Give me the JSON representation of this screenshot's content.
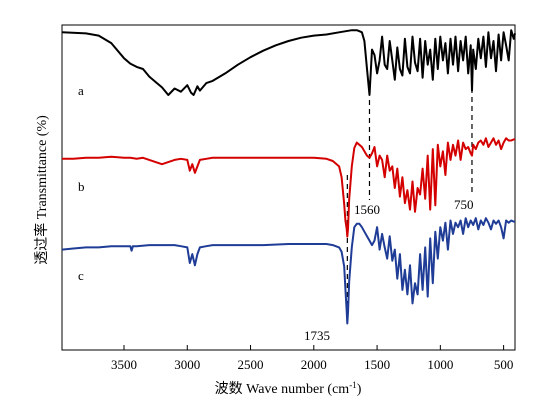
{
  "chart_data": {
    "type": "line",
    "title": "",
    "xlabel": "波数 Wave number (cm",
    "xlabel_sup": "-1",
    "xlabel_close": ")",
    "ylabel": "透过率 Transmittance (%)",
    "x_reversed": true,
    "xlim": [
      3990,
      410
    ],
    "x_ticks": [
      3500,
      3000,
      2500,
      2000,
      1500,
      1000,
      500
    ],
    "x_tick_labels": [
      "3500",
      "3000",
      "2500",
      "2000",
      "1500",
      "1000",
      "500"
    ],
    "y_axis_scale_shown": false,
    "grid": false,
    "series": [
      {
        "name": "a",
        "color": "#000000",
        "x": [
          3990,
          3800,
          3700,
          3600,
          3500,
          3450,
          3400,
          3350,
          3300,
          3250,
          3200,
          3150,
          3100,
          3050,
          3000,
          2970,
          2950,
          2920,
          2900,
          2850,
          2800,
          2700,
          2600,
          2500,
          2400,
          2300,
          2200,
          2100,
          2000,
          1900,
          1800,
          1700,
          1660,
          1640,
          1620,
          1600,
          1580,
          1560,
          1540,
          1520,
          1500,
          1480,
          1460,
          1440,
          1420,
          1400,
          1380,
          1360,
          1340,
          1320,
          1300,
          1280,
          1260,
          1240,
          1220,
          1200,
          1180,
          1160,
          1140,
          1120,
          1100,
          1080,
          1060,
          1040,
          1020,
          1000,
          980,
          960,
          940,
          920,
          900,
          880,
          860,
          840,
          820,
          800,
          780,
          760,
          750,
          740,
          720,
          700,
          680,
          660,
          640,
          620,
          600,
          580,
          560,
          540,
          520,
          500,
          480,
          460,
          440,
          420,
          410
        ],
        "y": [
          96,
          95,
          93,
          86,
          72,
          67,
          64,
          62,
          55,
          50,
          45,
          38,
          44,
          41,
          47,
          40,
          38,
          46,
          42,
          49,
          51,
          58,
          66,
          73,
          79,
          84,
          88,
          91,
          93,
          94,
          96,
          98,
          98,
          97,
          96,
          88,
          62,
          38,
          80,
          75,
          58,
          70,
          92,
          66,
          62,
          88,
          70,
          52,
          82,
          62,
          56,
          90,
          64,
          58,
          92,
          68,
          60,
          90,
          54,
          88,
          66,
          80,
          52,
          90,
          62,
          92,
          70,
          86,
          58,
          90,
          66,
          92,
          60,
          88,
          70,
          92,
          58,
          84,
          42,
          80,
          62,
          90,
          72,
          92,
          64,
          96,
          72,
          88,
          60,
          94,
          70,
          96,
          84,
          70,
          98,
          90,
          95
        ]
      },
      {
        "name": "b",
        "color": "#d40000",
        "x": [
          3990,
          3900,
          3800,
          3700,
          3600,
          3500,
          3450,
          3400,
          3350,
          3300,
          3250,
          3200,
          3150,
          3100,
          3050,
          3000,
          2980,
          2960,
          2940,
          2920,
          2900,
          2850,
          2800,
          2600,
          2400,
          2200,
          2000,
          1900,
          1850,
          1800,
          1780,
          1760,
          1750,
          1740,
          1735,
          1730,
          1720,
          1700,
          1680,
          1660,
          1640,
          1620,
          1600,
          1580,
          1560,
          1540,
          1520,
          1500,
          1480,
          1460,
          1440,
          1420,
          1400,
          1380,
          1360,
          1340,
          1320,
          1300,
          1280,
          1260,
          1240,
          1220,
          1200,
          1180,
          1160,
          1140,
          1120,
          1100,
          1080,
          1060,
          1040,
          1020,
          1000,
          980,
          960,
          940,
          920,
          900,
          880,
          860,
          840,
          820,
          800,
          780,
          760,
          750,
          740,
          720,
          700,
          680,
          660,
          640,
          620,
          600,
          580,
          560,
          540,
          520,
          500,
          480,
          460,
          440,
          420,
          410
        ],
        "y": [
          77,
          77,
          78,
          78,
          79,
          78,
          78,
          77,
          78,
          76,
          74,
          72,
          74,
          76,
          77,
          76,
          66,
          72,
          64,
          70,
          76,
          77,
          78,
          78,
          78,
          78,
          78,
          77,
          75,
          70,
          60,
          35,
          20,
          12,
          5,
          12,
          40,
          70,
          87,
          92,
          90,
          88,
          84,
          80,
          78,
          82,
          88,
          70,
          80,
          76,
          60,
          80,
          66,
          70,
          50,
          68,
          42,
          60,
          36,
          48,
          30,
          56,
          28,
          50,
          44,
          68,
          40,
          80,
          30,
          86,
          34,
          90,
          70,
          84,
          62,
          92,
          76,
          90,
          80,
          94,
          76,
          92,
          86,
          88,
          82,
          80,
          90,
          86,
          92,
          94,
          90,
          96,
          88,
          92,
          96,
          90,
          94,
          86,
          92,
          96,
          94,
          94,
          95,
          95
        ]
      },
      {
        "name": "c",
        "color": "#1f3c96",
        "x": [
          3990,
          3900,
          3800,
          3700,
          3600,
          3500,
          3450,
          3440,
          3430,
          3400,
          3300,
          3200,
          3100,
          3050,
          3000,
          2980,
          2960,
          2940,
          2920,
          2900,
          2850,
          2800,
          2600,
          2400,
          2200,
          2000,
          1900,
          1850,
          1800,
          1780,
          1760,
          1750,
          1740,
          1735,
          1730,
          1720,
          1700,
          1680,
          1660,
          1640,
          1620,
          1600,
          1580,
          1560,
          1540,
          1520,
          1500,
          1480,
          1460,
          1440,
          1420,
          1400,
          1380,
          1360,
          1340,
          1320,
          1300,
          1280,
          1260,
          1240,
          1220,
          1200,
          1180,
          1160,
          1140,
          1120,
          1100,
          1080,
          1060,
          1040,
          1020,
          1000,
          980,
          960,
          940,
          920,
          900,
          880,
          860,
          840,
          820,
          800,
          780,
          760,
          740,
          720,
          700,
          680,
          660,
          640,
          620,
          600,
          580,
          560,
          540,
          520,
          500,
          480,
          460,
          440,
          420,
          410
        ],
        "y": [
          70,
          71,
          72,
          72,
          73,
          73,
          73,
          69,
          73,
          73,
          74,
          74,
          74,
          73,
          72,
          58,
          66,
          56,
          66,
          72,
          73,
          74,
          74,
          74,
          75,
          75,
          75,
          74,
          72,
          68,
          55,
          35,
          15,
          4,
          14,
          42,
          72,
          90,
          93,
          93,
          90,
          86,
          82,
          78,
          74,
          78,
          90,
          70,
          84,
          72,
          62,
          82,
          60,
          70,
          44,
          66,
          34,
          52,
          30,
          56,
          22,
          40,
          30,
          66,
          34,
          72,
          28,
          80,
          40,
          86,
          62,
          90,
          78,
          94,
          70,
          96,
          84,
          94,
          90,
          96,
          84,
          98,
          90,
          96,
          92,
          98,
          88,
          96,
          92,
          98,
          94,
          88,
          96,
          93,
          96,
          90,
          80,
          96,
          94,
          96,
          95,
          95
        ]
      }
    ],
    "annotations": {
      "curve_labels": [
        "a",
        "b",
        "c"
      ],
      "peak_labels": [
        {
          "text": "1560",
          "x": 1560
        },
        {
          "text": "750",
          "x": 750
        },
        {
          "text": "1735",
          "x": 1735
        }
      ]
    }
  }
}
